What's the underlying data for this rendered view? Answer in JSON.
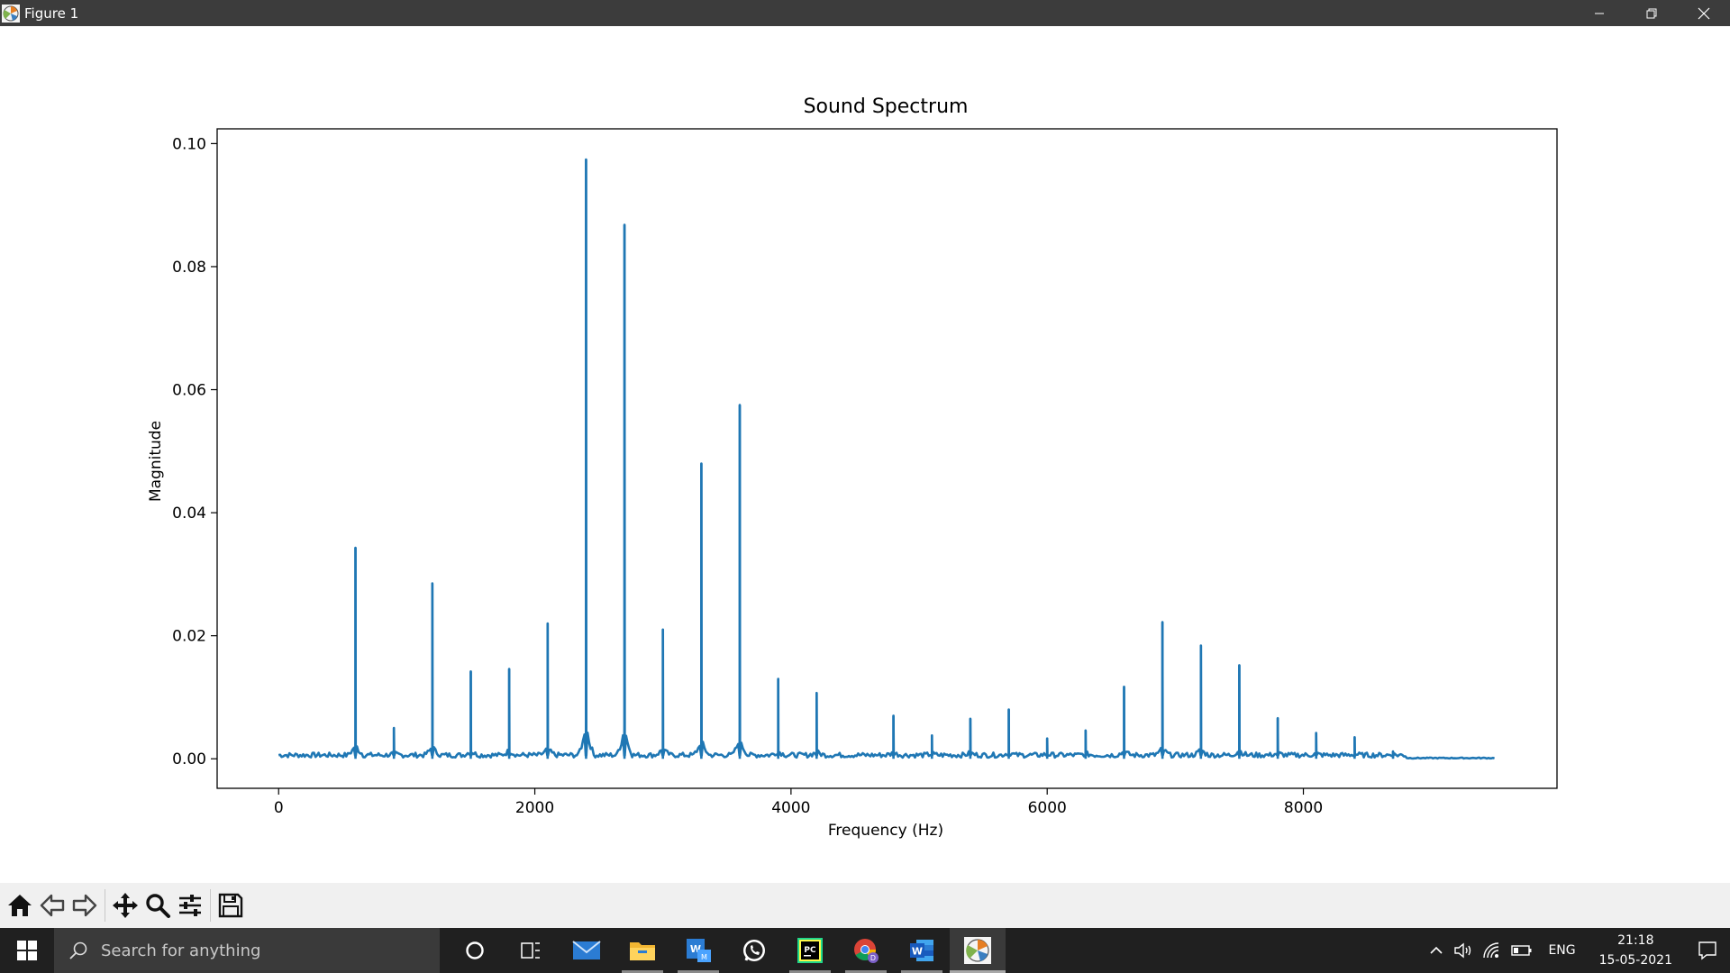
{
  "window": {
    "title": "Figure 1",
    "controls": [
      "minimize-icon",
      "restore-icon",
      "close-icon"
    ]
  },
  "toolbar": {
    "buttons": [
      "home-icon",
      "back-icon",
      "forward-icon",
      "pan-icon",
      "zoom-icon",
      "configure-subplots-icon",
      "save-icon"
    ]
  },
  "chart_data": {
    "type": "line",
    "title": "Sound Spectrum",
    "xlabel": "Frequency (Hz)",
    "ylabel": "Magnitude",
    "xlim": [
      -480,
      9980
    ],
    "ylim": [
      -0.0048,
      0.1024
    ],
    "xticks": [
      0,
      2000,
      4000,
      6000,
      8000
    ],
    "xtick_labels": [
      "0",
      "2000",
      "4000",
      "6000",
      "8000"
    ],
    "yticks": [
      0.0,
      0.02,
      0.04,
      0.06,
      0.08,
      0.1
    ],
    "ytick_labels": [
      "0.00",
      "0.02",
      "0.04",
      "0.06",
      "0.08",
      "0.10"
    ],
    "grid": false,
    "line_color": "#1f77b4",
    "x_range": [
      0,
      9500
    ],
    "noise_floor": 0.0005,
    "peaks": [
      {
        "x": 600,
        "y": 0.0343
      },
      {
        "x": 900,
        "y": 0.005
      },
      {
        "x": 1200,
        "y": 0.0285
      },
      {
        "x": 1500,
        "y": 0.0142
      },
      {
        "x": 1800,
        "y": 0.0146
      },
      {
        "x": 2100,
        "y": 0.022
      },
      {
        "x": 2400,
        "y": 0.0974
      },
      {
        "x": 2700,
        "y": 0.0868
      },
      {
        "x": 3000,
        "y": 0.021
      },
      {
        "x": 3300,
        "y": 0.048
      },
      {
        "x": 3600,
        "y": 0.0575
      },
      {
        "x": 3900,
        "y": 0.013
      },
      {
        "x": 4200,
        "y": 0.0107
      },
      {
        "x": 4800,
        "y": 0.007
      },
      {
        "x": 5100,
        "y": 0.0038
      },
      {
        "x": 5400,
        "y": 0.0065
      },
      {
        "x": 5700,
        "y": 0.008
      },
      {
        "x": 6000,
        "y": 0.0033
      },
      {
        "x": 6300,
        "y": 0.0046
      },
      {
        "x": 6600,
        "y": 0.0117
      },
      {
        "x": 6900,
        "y": 0.0222
      },
      {
        "x": 7200,
        "y": 0.0184
      },
      {
        "x": 7500,
        "y": 0.0152
      },
      {
        "x": 7800,
        "y": 0.0066
      },
      {
        "x": 8100,
        "y": 0.0042
      },
      {
        "x": 8400,
        "y": 0.0035
      },
      {
        "x": 8700,
        "y": 0.0012
      }
    ]
  },
  "taskbar": {
    "search_placeholder": "Search for anything",
    "apps": [
      {
        "name": "cortana-icon",
        "state": "none"
      },
      {
        "name": "task-view-icon",
        "state": "none"
      },
      {
        "name": "mail-icon",
        "state": "none"
      },
      {
        "name": "file-explorer-icon",
        "state": "running"
      },
      {
        "name": "word-sheet-app-icon",
        "state": "running"
      },
      {
        "name": "whatsapp-icon",
        "state": "none"
      },
      {
        "name": "pycharm-icon",
        "state": "running"
      },
      {
        "name": "chrome-icon",
        "state": "running"
      },
      {
        "name": "word-icon",
        "state": "running"
      },
      {
        "name": "matplotlib-figure-icon",
        "state": "active"
      }
    ],
    "language": "ENG",
    "time": "21:18",
    "date": "15-05-2021"
  }
}
